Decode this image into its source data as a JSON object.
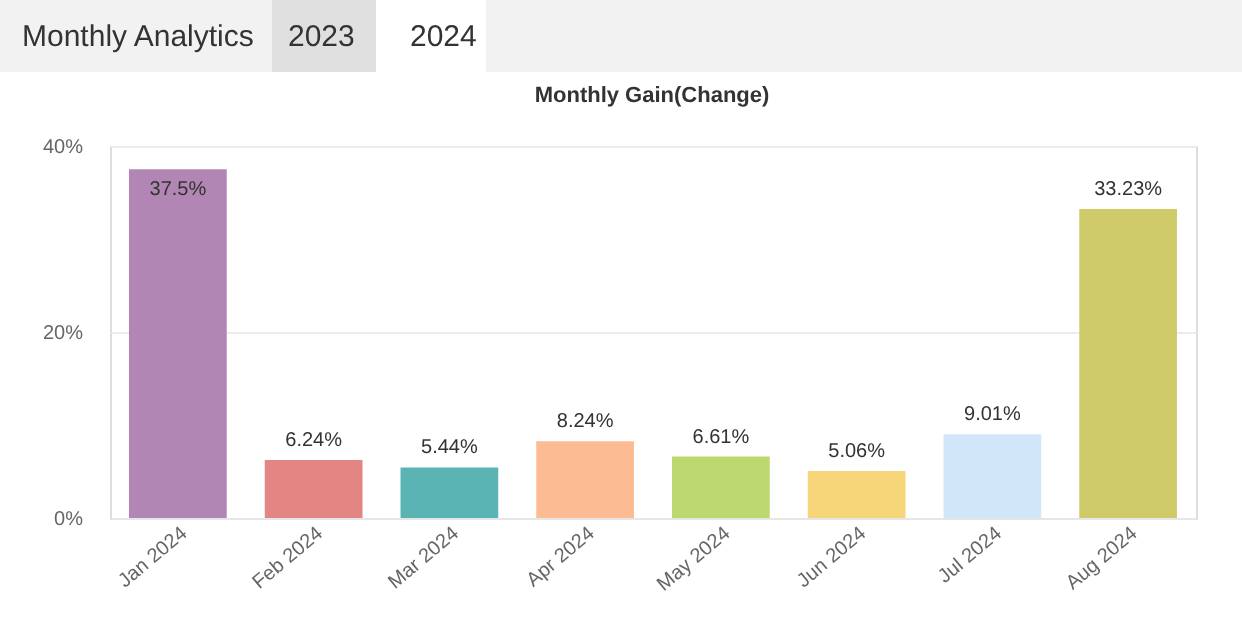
{
  "chart_data": {
    "type": "bar",
    "title": "Monthly Gain(Change)",
    "annotations": [
      "Monthly Analytics",
      "2023",
      "2024"
    ],
    "categories": [
      "Jan 2024",
      "Feb 2024",
      "Mar 2024",
      "Apr 2024",
      "May 2024",
      "Jun 2024",
      "Jul 2024",
      "Aug 2024"
    ],
    "values": [
      37.5,
      6.24,
      5.44,
      8.24,
      6.61,
      5.06,
      9.01,
      33.23
    ],
    "colors": [
      "#b286b4",
      "#e38582",
      "#5bb4b4",
      "#fdbb93",
      "#bcd86f",
      "#f6d679",
      "#d1e6f8",
      "#d0cb6a"
    ],
    "ylim": [
      0,
      40
    ],
    "yticks": [
      {
        "value": 0,
        "label": "0%"
      },
      {
        "value": 20,
        "label": "20%"
      },
      {
        "value": 40,
        "label": "40%"
      }
    ],
    "value_labels": [
      "37.5%",
      "6.24%",
      "5.44%",
      "8.24%",
      "6.61%",
      "5.06%",
      "9.01%",
      "33.23%"
    ],
    "grid": "y"
  }
}
